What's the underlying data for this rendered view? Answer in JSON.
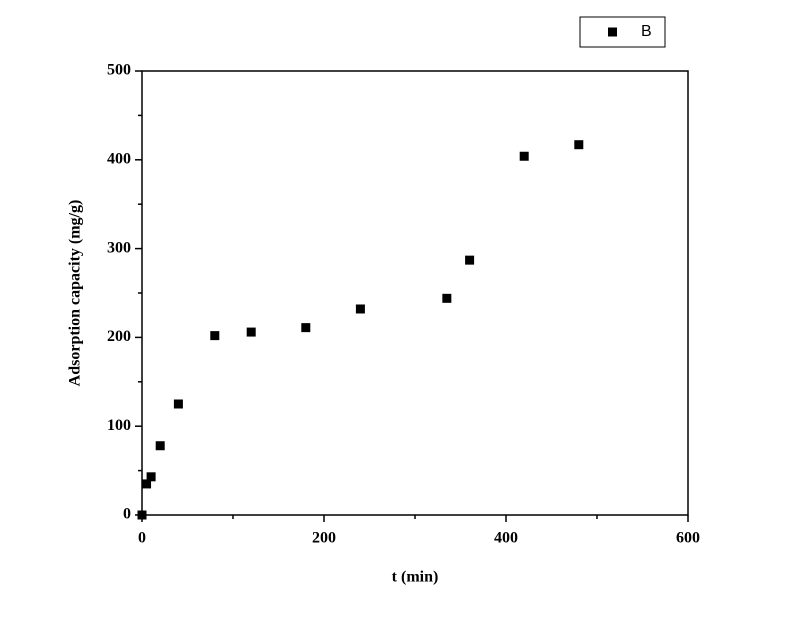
{
  "chart_data": {
    "type": "scatter",
    "x_label": "t (min)",
    "y_label": "Adsorption capacity (mg/g)",
    "series": [
      {
        "name": "B",
        "color": "#000000",
        "x": [
          0,
          5,
          10,
          20,
          40,
          80,
          120,
          180,
          240,
          335,
          360,
          420,
          480
        ],
        "values": [
          0,
          35,
          43,
          78,
          125,
          202,
          206,
          211,
          232,
          244,
          287,
          404,
          417
        ]
      }
    ],
    "xlim": [
      0,
      600
    ],
    "xticks": [
      0,
      200,
      400,
      600
    ],
    "xminorticks": [
      100,
      300,
      500
    ],
    "ylim": [
      0,
      500
    ],
    "yticks": [
      0,
      100,
      200,
      300,
      400,
      500
    ],
    "yminorticks": [
      50,
      150,
      250,
      350,
      450
    ],
    "legend": "top-right"
  }
}
